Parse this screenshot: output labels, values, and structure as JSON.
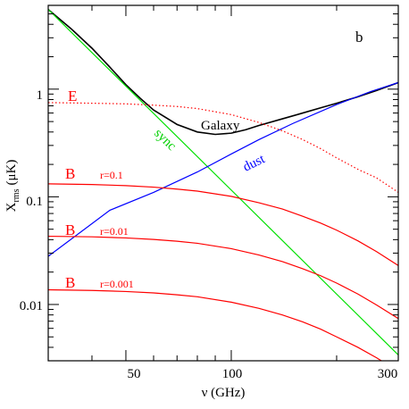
{
  "chart_data": {
    "type": "line",
    "panel_label": "b",
    "xlabel": "ν (GHz)",
    "ylabel": "X",
    "ylabel_subscript": "rms",
    "ylabel_unit": "(μK)",
    "xscale": "log",
    "yscale": "log",
    "xlim": [
      30,
      300
    ],
    "ylim": [
      0.003,
      6
    ],
    "x_ticklabels": [
      "50",
      "100",
      "300"
    ],
    "y_ticklabels": [
      "0.01",
      "0.1",
      "1"
    ],
    "series": [
      {
        "name": "Galaxy",
        "color": "#000000",
        "style": "solid",
        "x": [
          30,
          35,
          40,
          45,
          50,
          55,
          60,
          70,
          80,
          90,
          100,
          110,
          120,
          140,
          160,
          180,
          200,
          230,
          260,
          300
        ],
        "y": [
          5.5,
          3.6,
          2.4,
          1.6,
          1.1,
          0.82,
          0.64,
          0.47,
          0.4,
          0.38,
          0.39,
          0.42,
          0.46,
          0.53,
          0.6,
          0.67,
          0.74,
          0.85,
          0.97,
          1.15
        ]
      },
      {
        "name": "sync",
        "color": "#00e000",
        "style": "solid",
        "x": [
          30,
          300
        ],
        "y": [
          5.5,
          0.0034
        ]
      },
      {
        "name": "dust",
        "color": "#0000ff",
        "style": "solid",
        "x": [
          30,
          45,
          60,
          80,
          100,
          120,
          150,
          200,
          250,
          300
        ],
        "y": [
          0.028,
          0.075,
          0.11,
          0.17,
          0.25,
          0.34,
          0.48,
          0.72,
          0.95,
          1.15
        ]
      },
      {
        "name": "E",
        "color": "#ff0000",
        "style": "dotted",
        "x": [
          30,
          40,
          50,
          60,
          70,
          80,
          100,
          120,
          140,
          160,
          180,
          200,
          230,
          260,
          300
        ],
        "y": [
          0.75,
          0.74,
          0.73,
          0.71,
          0.69,
          0.66,
          0.58,
          0.49,
          0.41,
          0.34,
          0.28,
          0.23,
          0.18,
          0.15,
          0.11
        ]
      },
      {
        "name": "B r=0.1",
        "color": "#ff0000",
        "style": "solid",
        "x": [
          30,
          40,
          50,
          60,
          70,
          80,
          100,
          120,
          140,
          160,
          180,
          200,
          230,
          260,
          300
        ],
        "y": [
          0.132,
          0.13,
          0.127,
          0.123,
          0.118,
          0.113,
          0.101,
          0.088,
          0.077,
          0.066,
          0.057,
          0.049,
          0.039,
          0.031,
          0.023
        ]
      },
      {
        "name": "B r=0.01",
        "color": "#ff0000",
        "style": "solid",
        "x": [
          30,
          40,
          50,
          60,
          70,
          80,
          100,
          120,
          140,
          160,
          180,
          200,
          230,
          260,
          300
        ],
        "y": [
          0.043,
          0.0425,
          0.0415,
          0.0402,
          0.0387,
          0.037,
          0.033,
          0.0288,
          0.025,
          0.0215,
          0.0185,
          0.0158,
          0.0125,
          0.0099,
          0.0074
        ]
      },
      {
        "name": "B r=0.001",
        "color": "#ff0000",
        "style": "solid",
        "x": [
          30,
          40,
          50,
          60,
          70,
          80,
          100,
          120,
          140,
          160,
          180,
          200,
          230,
          260,
          300
        ],
        "y": [
          0.0137,
          0.0135,
          0.0132,
          0.0128,
          0.0123,
          0.0118,
          0.0105,
          0.0092,
          0.008,
          0.0069,
          0.0059,
          0.005,
          0.004,
          0.0032,
          0.0024
        ]
      }
    ],
    "annotations": {
      "galaxy": "Galaxy",
      "sync": "sync",
      "dust": "dust",
      "e_label": "E",
      "b_label_1": "B",
      "b_label_2": "B",
      "b_label_3": "B",
      "r1": "r=0.1",
      "r2": "r=0.01",
      "r3": "r=0.001"
    }
  }
}
